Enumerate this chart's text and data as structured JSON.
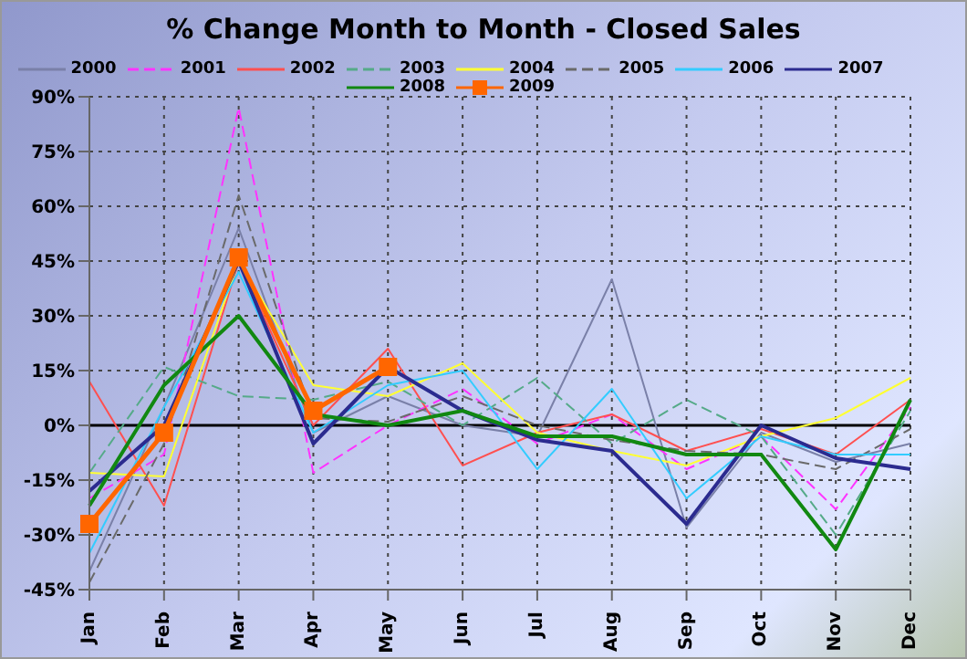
{
  "chart_data": {
    "type": "line",
    "title": "% Change Month to Month - Closed Sales",
    "categories": [
      "Jan",
      "Feb",
      "Mar",
      "Apr",
      "May",
      "Jun",
      "Jul",
      "Aug",
      "Sep",
      "Oct",
      "Nov",
      "Dec"
    ],
    "series": [
      {
        "name": "2000",
        "color": "#7a80a8",
        "values": [
          -40,
          5,
          54,
          -2,
          8,
          0,
          -3,
          40,
          -28,
          -2,
          -10,
          -5
        ]
      },
      {
        "name": "2001",
        "color": "#ff33ff",
        "line_style": "dashed",
        "values": [
          -20,
          -8,
          87,
          -13,
          0,
          10,
          -5,
          3,
          -12,
          -3,
          -23,
          5
        ]
      },
      {
        "name": "2002",
        "color": "#ff5050",
        "values": [
          12,
          -22,
          45,
          0,
          21,
          -11,
          -2,
          3,
          -7,
          -1,
          -8,
          7
        ]
      },
      {
        "name": "2003",
        "color": "#55aa88",
        "line_style": "dashed",
        "values": [
          -13,
          16,
          8,
          7,
          12,
          0,
          13,
          -5,
          7,
          -3,
          -30,
          4
        ]
      },
      {
        "name": "2004",
        "color": "#ffff33",
        "values": [
          -13,
          -14,
          45,
          11,
          8,
          17,
          -2,
          -7,
          -11,
          -3,
          2,
          13
        ]
      },
      {
        "name": "2005",
        "color": "#6a6a6a",
        "line_style": "dashed",
        "values": [
          -43,
          -5,
          63,
          2,
          1,
          8,
          0,
          -4,
          -7,
          -8,
          -12,
          -1
        ]
      },
      {
        "name": "2006",
        "color": "#33ccff",
        "values": [
          -35,
          5,
          42,
          -2,
          11,
          15,
          -12,
          10,
          -20,
          -3,
          -8,
          -8
        ]
      },
      {
        "name": "2007",
        "color": "#2b2b8f",
        "values": [
          -18,
          0,
          45,
          -5,
          16,
          4,
          -4,
          -7,
          -27,
          0,
          -9,
          -12
        ]
      },
      {
        "name": "2008",
        "color": "#118811",
        "values": [
          -22,
          11,
          30,
          3,
          0,
          4,
          -3,
          -3,
          -8,
          -8,
          -34,
          7
        ]
      },
      {
        "name": "2009",
        "color": "#ff6600",
        "marker": "square",
        "values": [
          -27,
          -2,
          46,
          4,
          16,
          null,
          null,
          null,
          null,
          null,
          null,
          null
        ]
      }
    ],
    "ylim": [
      -45,
      90
    ],
    "yticks": [
      {
        "value": -45,
        "label": "-45%"
      },
      {
        "value": -30,
        "label": "-30%"
      },
      {
        "value": -15,
        "label": "-15%"
      },
      {
        "value": 0,
        "label": "0%"
      },
      {
        "value": 15,
        "label": "15%"
      },
      {
        "value": 30,
        "label": "30%"
      },
      {
        "value": 45,
        "label": "45%"
      },
      {
        "value": 60,
        "label": "60%"
      },
      {
        "value": 75,
        "label": "75%"
      },
      {
        "value": 90,
        "label": "90%"
      }
    ],
    "ref_lines": [
      {
        "axis": "y",
        "value": 0,
        "color": "#000000"
      }
    ],
    "grid": true,
    "legend": "top"
  }
}
